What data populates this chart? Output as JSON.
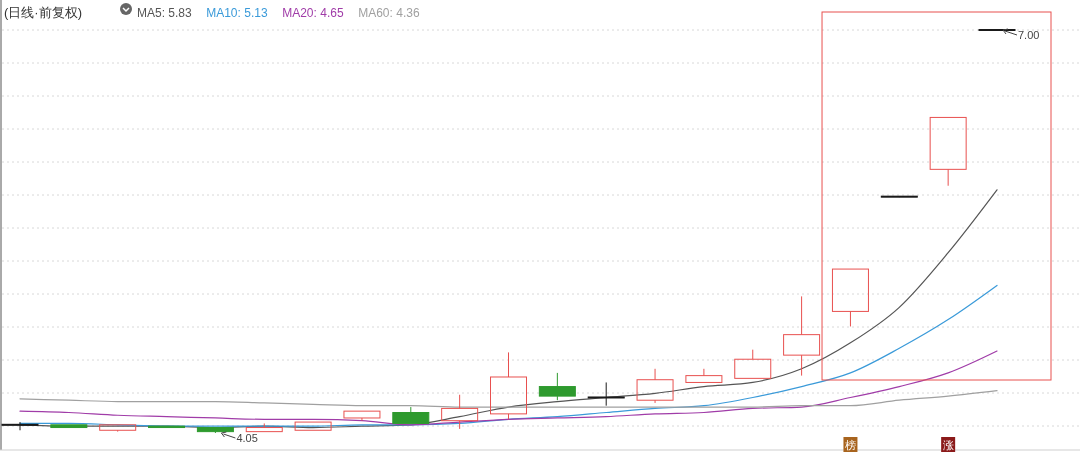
{
  "chart_data": {
    "type": "candlestick",
    "title": "(日线·前复权)",
    "categories": [
      null,
      null,
      null,
      null,
      null,
      null,
      null,
      null,
      null,
      null,
      null,
      null,
      null,
      null,
      null,
      null,
      null,
      null,
      null,
      null,
      null
    ],
    "ohlc": [
      [
        4.11,
        4.13,
        4.07,
        4.11
      ],
      [
        4.11,
        4.11,
        4.09,
        4.09
      ],
      [
        4.07,
        4.11,
        4.06,
        4.11
      ],
      [
        4.1,
        4.1,
        4.09,
        4.09
      ],
      [
        4.09,
        4.09,
        4.05,
        4.06
      ],
      [
        4.06,
        4.12,
        4.06,
        4.09
      ],
      [
        4.07,
        4.13,
        4.07,
        4.13
      ],
      [
        4.16,
        4.21,
        4.14,
        4.21
      ],
      [
        4.2,
        4.24,
        4.12,
        4.12
      ],
      [
        4.14,
        4.33,
        4.08,
        4.23
      ],
      [
        4.19,
        4.64,
        4.15,
        4.46
      ],
      [
        4.39,
        4.49,
        4.29,
        4.32
      ],
      [
        4.31,
        4.42,
        4.25,
        4.31
      ],
      [
        4.29,
        4.52,
        4.27,
        4.44
      ],
      [
        4.42,
        4.52,
        4.42,
        4.47
      ],
      [
        4.45,
        4.66,
        4.45,
        4.59
      ],
      [
        4.62,
        5.05,
        4.47,
        4.77
      ],
      [
        4.94,
        5.25,
        4.83,
        5.25
      ],
      [
        5.78,
        5.78,
        5.78,
        5.78
      ],
      [
        5.98,
        6.36,
        5.86,
        6.36
      ],
      [
        7.0,
        7.0,
        7.0,
        7.0
      ]
    ],
    "series": [
      {
        "type": "line",
        "name": "MA5: 5.83",
        "color": "#555555",
        "values": [
          4.11,
          4.1,
          4.1,
          4.1,
          4.09,
          4.1,
          4.09,
          4.1,
          4.11,
          4.17,
          4.24,
          4.28,
          4.31,
          4.34,
          4.39,
          4.42,
          4.52,
          4.71,
          4.97,
          5.37,
          5.83
        ]
      },
      {
        "type": "line",
        "name": "MA10: 5.13",
        "color": "#3a9ad9",
        "values": [
          4.12,
          4.12,
          4.11,
          4.1,
          4.1,
          4.1,
          4.1,
          4.11,
          4.11,
          4.12,
          4.15,
          4.17,
          4.2,
          4.23,
          4.25,
          4.31,
          4.39,
          4.49,
          4.67,
          4.88,
          5.13
        ]
      },
      {
        "type": "line",
        "name": "MA20: 4.65",
        "color": "#a03ca8",
        "values": [
          4.21,
          4.2,
          4.18,
          4.17,
          4.16,
          4.15,
          4.15,
          4.14,
          4.11,
          4.13,
          4.15,
          4.16,
          4.17,
          4.19,
          4.2,
          4.23,
          4.24,
          4.31,
          4.39,
          4.49,
          4.65
        ]
      },
      {
        "type": "line",
        "name": "MA60: 4.36",
        "color": "#a0a0a0",
        "values": [
          4.3,
          4.29,
          4.28,
          4.28,
          4.28,
          4.27,
          4.26,
          4.25,
          4.25,
          4.24,
          4.24,
          4.24,
          4.24,
          4.24,
          4.24,
          4.24,
          4.25,
          4.25,
          4.29,
          4.32,
          4.36
        ]
      }
    ],
    "annotations": [
      "4.05",
      "7.00",
      "榜",
      "涨"
    ],
    "grid": true,
    "legend": "top left"
  }
}
